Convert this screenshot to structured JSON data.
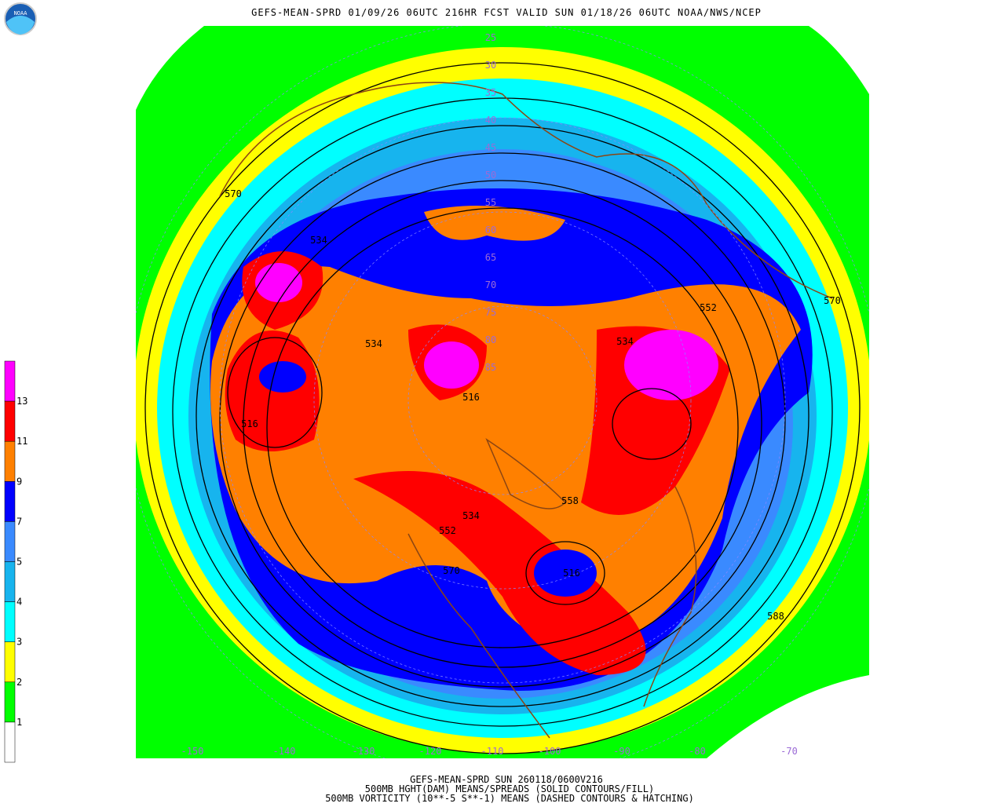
{
  "header": {
    "title": "GEFS-MEAN-SPRD 01/09/26 06UTC 216HR FCST VALID SUN 01/18/26 06UTC NOAA/NWS/NCEP",
    "logo": "NOAA"
  },
  "legend": {
    "labels": [
      "13",
      "11",
      "9",
      "7",
      "5",
      "4",
      "3",
      "2",
      "1"
    ],
    "colors": [
      "#ff00ff",
      "#ff0000",
      "#ff8000",
      "#0000ff",
      "#3a8aff",
      "#17b4ee",
      "#00ffff",
      "#ffff00",
      "#00ff00",
      "#ffffff"
    ]
  },
  "map": {
    "contour_labels": [
      "570",
      "534",
      "534",
      "516",
      "516",
      "534",
      "552",
      "570",
      "558",
      "534",
      "552",
      "570",
      "516",
      "588"
    ],
    "latitude_labels": [
      "25",
      "30",
      "35",
      "40",
      "45",
      "50",
      "55",
      "60",
      "65",
      "70",
      "75",
      "80",
      "85"
    ],
    "longitude_labels": [
      "-150",
      "-140",
      "-130",
      "-120",
      "-110",
      "-100",
      "-90",
      "-80",
      "-70"
    ]
  },
  "footer": {
    "lines": [
      "GEFS-MEAN-SPRD SUN 260118/0600V216",
      "500MB HGHT(DAM) MEANS/SPREADS (SOLID CONTOURS/FILL)",
      "500MB VORTICITY (10**-5 S**-1) MEANS (DASHED CONTOURS & HATCHING)"
    ]
  }
}
